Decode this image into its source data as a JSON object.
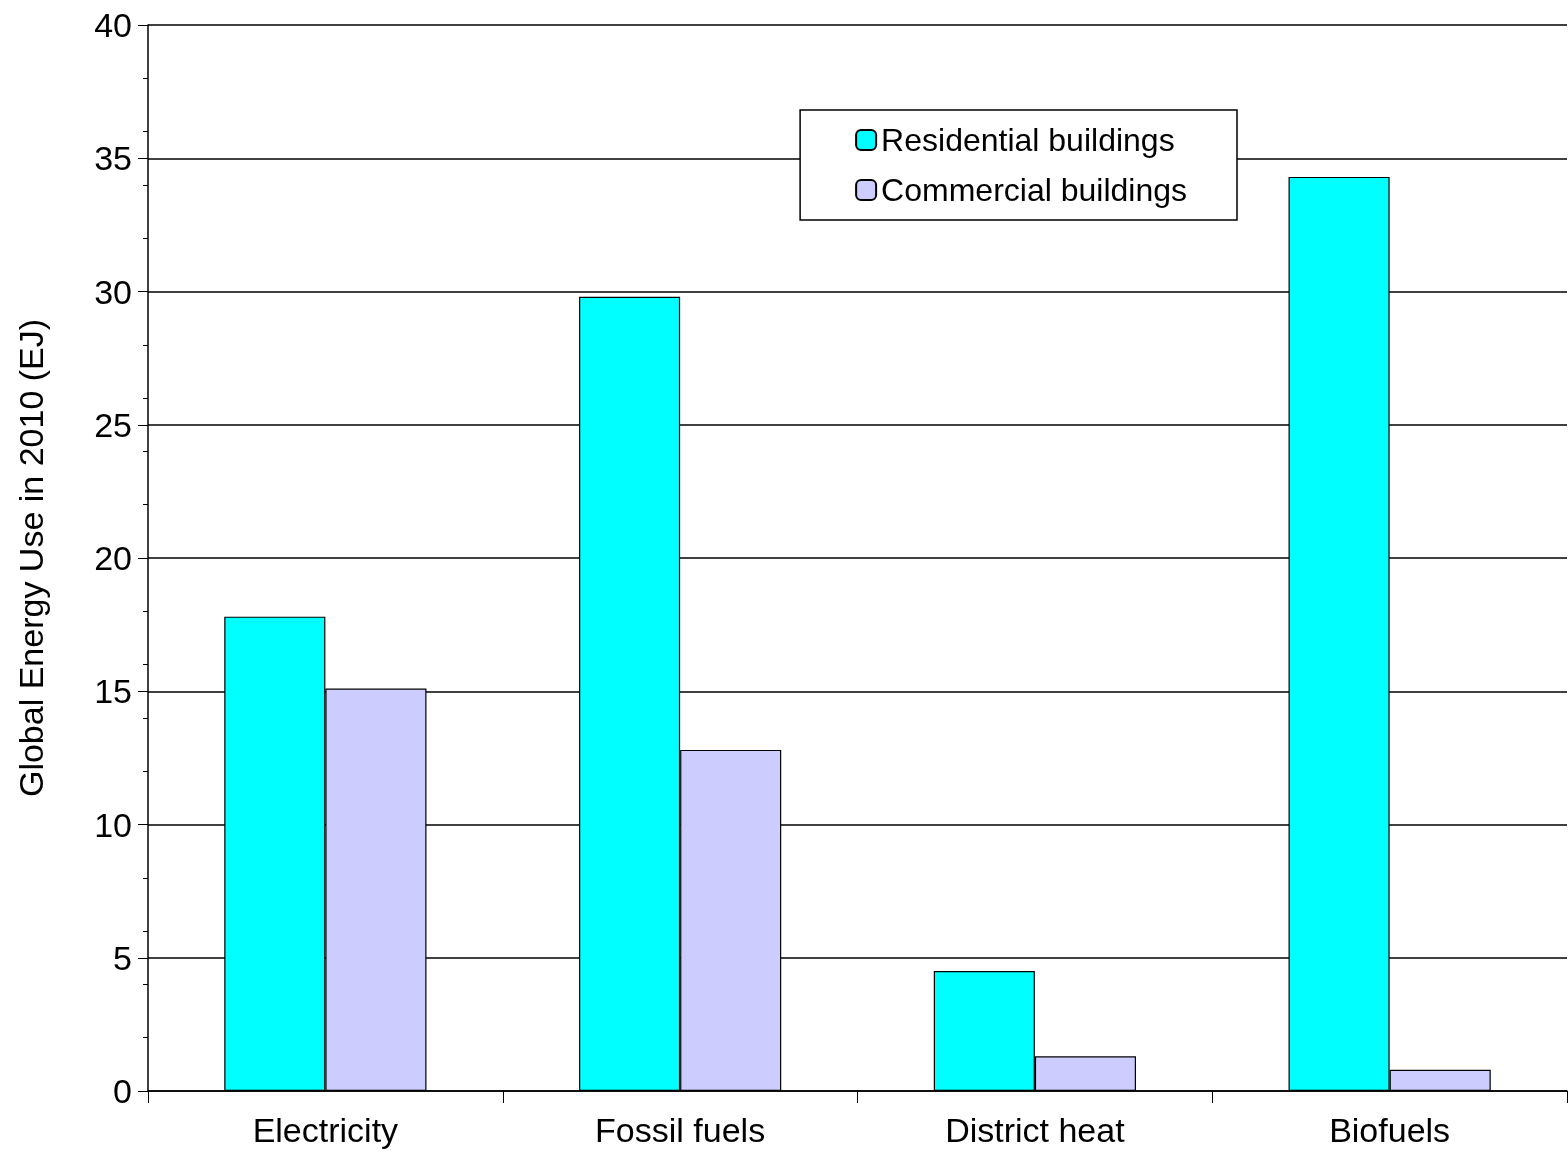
{
  "chart_data": {
    "type": "bar",
    "ylabel": "Global Energy Use in 2010 (EJ)",
    "categories": [
      "Electricity",
      "Fossil fuels",
      "District heat",
      "Biofuels"
    ],
    "series": [
      {
        "name": "Residential buildings",
        "color": "#00ffff",
        "values": [
          17.8,
          29.8,
          4.5,
          34.3
        ]
      },
      {
        "name": "Commercial buildings",
        "color": "#ccccff",
        "values": [
          15.1,
          12.8,
          1.3,
          0.8
        ]
      }
    ],
    "ylim": [
      0,
      40
    ],
    "yticks": [
      0,
      5,
      10,
      15,
      20,
      25,
      30,
      35,
      40
    ],
    "grid": "y",
    "legend": "top right"
  }
}
